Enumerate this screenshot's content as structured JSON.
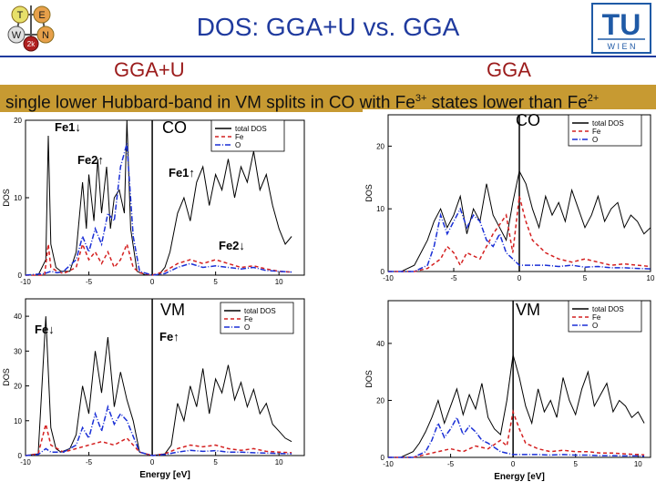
{
  "slide": {
    "title": "DOS: GGA+U vs. GGA",
    "left_label": "GGA+U",
    "right_label": "GGA",
    "banner": {
      "part1": "single lower Hubbard-band in VM splits in CO with Fe",
      "sup1": "3+",
      "part2": " states lower than Fe",
      "sup2": "2+"
    },
    "logos": {
      "left_logo": "WIEN2k-logo",
      "left_letters": [
        "T",
        "E",
        "W",
        "N",
        "2k"
      ],
      "tu_logo_text": "TU",
      "tu_logo_sub": "W I E N"
    }
  },
  "chart_data": [
    {
      "type": "line",
      "title": "CO",
      "panel": "GGA+U upper",
      "annotations": [
        "Fe1↓",
        "Fe2↑",
        "Fe1↑",
        "Fe2↓"
      ],
      "legend": [
        "total DOS",
        "Fe",
        "O"
      ],
      "legend_position": "top-right",
      "xlim": [
        -10,
        12
      ],
      "ylim": [
        0,
        20
      ],
      "yticks": [
        "0",
        "10",
        "20"
      ],
      "xticks": [
        "-10",
        "-5",
        "0",
        "5",
        "10"
      ],
      "ylabel": "DOS",
      "series": [
        {
          "name": "total DOS",
          "color": "#000000",
          "x": [
            -10,
            -9,
            -8.4,
            -8.2,
            -8,
            -7.6,
            -7.2,
            -6.5,
            -6,
            -5.5,
            -5.2,
            -5,
            -4.6,
            -4.3,
            -4,
            -3.6,
            -3.3,
            -3,
            -2.6,
            -2.2,
            -2,
            -1.7,
            -1.2,
            -0.5,
            0.5,
            1,
            1.4,
            2,
            2.5,
            3,
            3.5,
            4,
            4.5,
            5,
            5.5,
            6,
            6.5,
            7,
            7.5,
            8,
            8.5,
            9,
            9.5,
            10,
            10.5,
            11
          ],
          "values": [
            0,
            0,
            2,
            18,
            4,
            1,
            0.5,
            0.5,
            3,
            12,
            6,
            13,
            7,
            15,
            8,
            14,
            6,
            10,
            11,
            8,
            20,
            6,
            0.5,
            0,
            0,
            1,
            3,
            8,
            10,
            7,
            12,
            14,
            9,
            13,
            11,
            15,
            10,
            14,
            12,
            16,
            11,
            13,
            9,
            6,
            4,
            5
          ]
        },
        {
          "name": "Fe",
          "color": "#d42020",
          "x": [
            -10,
            -8.5,
            -8.2,
            -8,
            -7.5,
            -7,
            -6,
            -5.5,
            -5,
            -4.5,
            -4,
            -3.5,
            -3,
            -2.5,
            -2,
            -1.5,
            -1,
            0,
            1,
            2,
            3,
            4,
            5,
            6,
            7,
            8,
            9,
            10,
            11
          ],
          "values": [
            0,
            0,
            4,
            1,
            0.5,
            0.2,
            1,
            4,
            2,
            3,
            1.5,
            3,
            1,
            2,
            4,
            1,
            0.3,
            0,
            0.5,
            1.5,
            2,
            1.5,
            2,
            1.5,
            1,
            1.2,
            0.8,
            0.5,
            0.4
          ]
        },
        {
          "name": "O",
          "color": "#1a2fd6",
          "x": [
            -10,
            -8.5,
            -8,
            -7.5,
            -7,
            -6,
            -5.5,
            -5,
            -4.5,
            -4,
            -3.5,
            -3,
            -2.5,
            -2,
            -1.5,
            -1,
            0,
            1,
            2,
            3,
            4,
            5,
            6,
            7,
            8,
            9,
            10,
            11
          ],
          "values": [
            0,
            0.2,
            0.5,
            0.3,
            0.5,
            2,
            5,
            3,
            6,
            4,
            8,
            7,
            14,
            17,
            5,
            0.5,
            0,
            0.2,
            1,
            1.5,
            1,
            1.2,
            1,
            0.8,
            1,
            0.6,
            0.5,
            0.4
          ]
        }
      ]
    },
    {
      "type": "line",
      "title": "CO",
      "panel": "GGA upper",
      "legend": [
        "total DOS",
        "Fe",
        "O"
      ],
      "legend_position": "top-right",
      "xlim": [
        -10,
        10
      ],
      "ylim": [
        0,
        25
      ],
      "yticks": [
        "0",
        "10",
        "20"
      ],
      "xticks": [
        "-10",
        "-5",
        "0",
        "5",
        "10"
      ],
      "ylabel": "DOS",
      "series": [
        {
          "name": "total DOS",
          "color": "#000000",
          "x": [
            -10,
            -9,
            -8,
            -7.5,
            -7,
            -6.5,
            -6,
            -5.5,
            -5,
            -4.5,
            -4,
            -3.5,
            -3,
            -2.5,
            -2,
            -1.5,
            -1,
            -0.5,
            0,
            0.5,
            1,
            1.5,
            2,
            2.5,
            3,
            3.5,
            4,
            4.5,
            5,
            5.5,
            6,
            6.5,
            7,
            7.5,
            8,
            8.5,
            9,
            9.5,
            10
          ],
          "values": [
            0,
            0,
            1,
            3,
            5,
            8,
            10,
            7,
            9,
            12,
            6,
            10,
            8,
            14,
            9,
            7,
            5,
            11,
            16,
            14,
            10,
            7,
            12,
            9,
            11,
            8,
            13,
            10,
            7,
            9,
            12,
            8,
            10,
            11,
            7,
            9,
            8,
            6,
            7
          ]
        },
        {
          "name": "Fe",
          "color": "#d42020",
          "x": [
            -10,
            -8,
            -7,
            -6,
            -5.5,
            -5,
            -4.5,
            -4,
            -3,
            -2.5,
            -2,
            -1,
            -0.5,
            0,
            0.5,
            1,
            2,
            3,
            4,
            5,
            6,
            7,
            8,
            9,
            10
          ],
          "values": [
            0,
            0,
            0.5,
            2,
            4,
            3,
            1,
            3,
            2,
            4,
            6,
            9,
            3,
            12,
            8,
            5,
            3,
            2,
            1.5,
            2,
            1.5,
            1,
            1.2,
            1,
            0.8
          ]
        },
        {
          "name": "O",
          "color": "#1a2fd6",
          "x": [
            -10,
            -8,
            -7,
            -6.5,
            -6,
            -5.5,
            -5,
            -4.5,
            -4,
            -3.5,
            -3,
            -2.5,
            -2,
            -1.5,
            -1,
            -0.5,
            0,
            1,
            2,
            3,
            4,
            5,
            6,
            7,
            8,
            9,
            10
          ],
          "values": [
            0,
            0,
            1,
            4,
            9,
            6,
            8,
            10,
            7,
            9,
            8,
            5,
            4,
            6,
            3,
            2,
            1,
            1,
            1,
            0.8,
            1,
            0.7,
            0.8,
            0.6,
            0.6,
            0.5,
            0.4
          ]
        }
      ]
    },
    {
      "type": "line",
      "title": "VM",
      "panel": "GGA+U lower",
      "annotations": [
        "Fe↓",
        "Fe↑"
      ],
      "legend": [
        "total DOS",
        "Fe",
        "O"
      ],
      "legend_position": "top-right",
      "xlim": [
        -10,
        12
      ],
      "ylim": [
        0,
        45
      ],
      "yticks": [
        "0",
        "10",
        "20",
        "30",
        "40"
      ],
      "xticks": [
        "-10",
        "-5",
        "0",
        "5",
        "10"
      ],
      "xlabel": "Energy [eV]",
      "ylabel": "DOS",
      "series": [
        {
          "name": "total DOS",
          "color": "#000000",
          "x": [
            -10,
            -9,
            -8.4,
            -8,
            -7.6,
            -7.2,
            -6.5,
            -6,
            -5.5,
            -5,
            -4.5,
            -4,
            -3.5,
            -3,
            -2.5,
            -2,
            -1.5,
            -1,
            0,
            1,
            1.5,
            2,
            2.5,
            3,
            3.5,
            4,
            4.5,
            5,
            5.5,
            6,
            6.5,
            7,
            7.5,
            8,
            8.5,
            9,
            9.5,
            10,
            10.5,
            11
          ],
          "values": [
            0,
            0.5,
            40,
            8,
            2,
            1,
            2,
            6,
            20,
            12,
            30,
            18,
            34,
            14,
            24,
            16,
            10,
            1,
            0,
            0.5,
            3,
            15,
            10,
            20,
            14,
            25,
            12,
            22,
            18,
            26,
            16,
            21,
            14,
            19,
            12,
            15,
            9,
            7,
            5,
            4
          ]
        },
        {
          "name": "Fe",
          "color": "#d42020",
          "x": [
            -10,
            -9,
            -8.4,
            -8,
            -7,
            -6,
            -5,
            -4,
            -3,
            -2,
            -1,
            0,
            1,
            2,
            3,
            4,
            5,
            6,
            7,
            8,
            9,
            10,
            11
          ],
          "values": [
            0,
            0.5,
            9,
            3,
            1,
            2,
            3,
            4,
            3,
            5,
            1,
            0,
            0.5,
            2,
            3,
            2.5,
            3,
            2,
            1.5,
            2,
            1.2,
            1,
            0.8
          ]
        },
        {
          "name": "O",
          "color": "#1a2fd6",
          "x": [
            -10,
            -9,
            -8.4,
            -8,
            -7,
            -6,
            -5.5,
            -5,
            -4.5,
            -4,
            -3.5,
            -3,
            -2.5,
            -2,
            -1,
            0,
            1,
            2,
            3,
            4,
            5,
            6,
            7,
            8,
            9,
            10,
            11
          ],
          "values": [
            0,
            0.3,
            2,
            1,
            1,
            3,
            8,
            5,
            12,
            7,
            14,
            9,
            12,
            10,
            1,
            0,
            0.3,
            1,
            1.5,
            1.2,
            1.4,
            1,
            1,
            0.8,
            0.7,
            0.6,
            0.5
          ]
        }
      ]
    },
    {
      "type": "line",
      "title": "VM",
      "panel": "GGA lower",
      "legend": [
        "total DOS",
        "Fe",
        "O"
      ],
      "legend_position": "top-right",
      "xlim": [
        -10,
        11
      ],
      "ylim": [
        0,
        55
      ],
      "yticks": [
        "0",
        "20",
        "40"
      ],
      "xticks": [
        "-10",
        "-5",
        "0",
        "5",
        "10"
      ],
      "xlabel": "Energy [eV]",
      "ylabel": "DOS",
      "series": [
        {
          "name": "total DOS",
          "color": "#000000",
          "x": [
            -10,
            -9,
            -8,
            -7.5,
            -7,
            -6.5,
            -6,
            -5.5,
            -5,
            -4.5,
            -4,
            -3.5,
            -3,
            -2.5,
            -2,
            -1.5,
            -1,
            -0.5,
            0,
            0.5,
            1,
            1.5,
            2,
            2.5,
            3,
            3.5,
            4,
            4.5,
            5,
            5.5,
            6,
            6.5,
            7,
            7.5,
            8,
            8.5,
            9,
            9.5,
            10,
            10.5
          ],
          "values": [
            0,
            0,
            2,
            5,
            9,
            14,
            20,
            12,
            18,
            24,
            15,
            22,
            17,
            26,
            14,
            10,
            8,
            20,
            36,
            28,
            18,
            12,
            24,
            16,
            20,
            14,
            28,
            20,
            15,
            24,
            30,
            18,
            22,
            26,
            16,
            20,
            18,
            14,
            16,
            12
          ]
        },
        {
          "name": "Fe",
          "color": "#d42020",
          "x": [
            -10,
            -8,
            -7,
            -6,
            -5,
            -4,
            -3,
            -2,
            -1,
            -0.5,
            0,
            0.5,
            1,
            2,
            3,
            4,
            5,
            6,
            7,
            8,
            9,
            10,
            10.5
          ],
          "values": [
            0,
            0,
            1,
            2,
            3,
            2,
            4,
            3,
            6,
            4,
            16,
            10,
            5,
            3,
            2,
            2.5,
            2,
            2,
            1.5,
            1.5,
            1.2,
            1,
            0.9
          ]
        },
        {
          "name": "O",
          "color": "#1a2fd6",
          "x": [
            -10,
            -8,
            -7,
            -6.5,
            -6,
            -5.5,
            -5,
            -4.5,
            -4,
            -3.5,
            -3,
            -2.5,
            -2,
            -1,
            0,
            1,
            2,
            3,
            4,
            5,
            6,
            7,
            8,
            9,
            10,
            10.5
          ],
          "values": [
            0,
            0,
            2,
            6,
            12,
            7,
            10,
            14,
            8,
            11,
            9,
            6,
            5,
            2,
            1,
            1,
            1,
            0.8,
            1,
            0.8,
            0.8,
            0.6,
            0.6,
            0.5,
            0.5,
            0.4
          ]
        }
      ]
    }
  ]
}
